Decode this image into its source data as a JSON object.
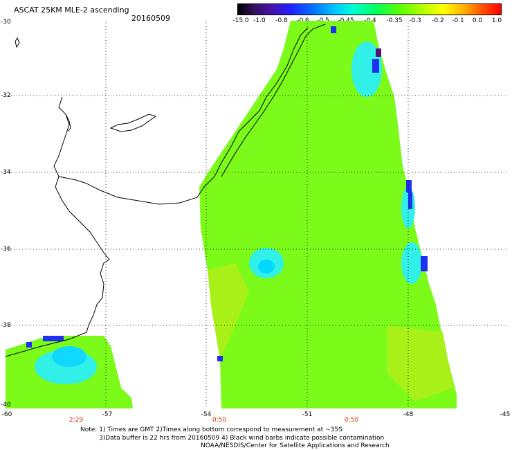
{
  "header": {
    "title": "ASCAT 25KM MLE-2 ascending",
    "date": "20160509"
  },
  "colorbar": {
    "labels": [
      "-15.0",
      "-1.0",
      "-0.8",
      "-0.6",
      "-0.5",
      "-0.45",
      "-0.4",
      "-0.35",
      "-0.3",
      "-0.2",
      "-0.1",
      "0.0",
      "1.0"
    ]
  },
  "axes": {
    "y_ticks": [
      "-30",
      "-32",
      "-34",
      "-36",
      "-38",
      "-40"
    ],
    "x_ticks": [
      "-60",
      "-57",
      "-54",
      "-51",
      "-48",
      "-45"
    ],
    "times": [
      "2:29",
      "0:50",
      "0:50"
    ]
  },
  "notes": {
    "line1": "Note: 1) Times are GMT 2)Times along bottom correspond to measurement at ~35S",
    "line2": "3)Data buffer is 22 hrs from 20160509 4) Black wind barbs indicate possible contamination",
    "line3": "NOAA/NESDIS/Center for Satellite Applications and Research"
  },
  "colors": {
    "swath_main": "#7cfa1a",
    "swath_alt": "#a8f018",
    "swath_cyan": "#30f0e8",
    "swath_blue": "#2030f0",
    "swath_purple": "#501080"
  }
}
